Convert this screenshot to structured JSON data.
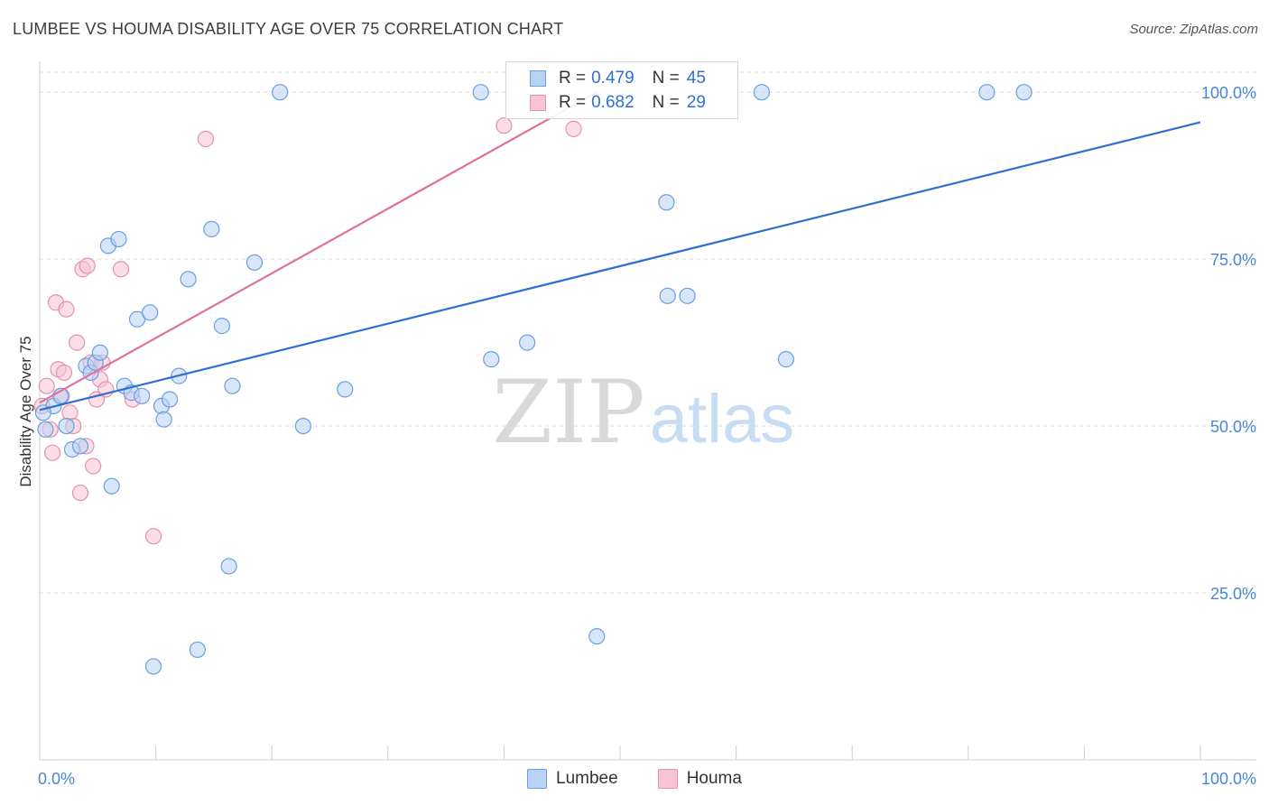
{
  "title": "LUMBEE VS HOUMA DISABILITY AGE OVER 75 CORRELATION CHART",
  "source": "Source: ZipAtlas.com",
  "watermark": {
    "zip": "ZIP",
    "atlas": "atlas"
  },
  "colors": {
    "lumbee_fill": "#b8d2f4",
    "lumbee_stroke": "#6a9fe0",
    "lumbee_line": "#2e6fcf",
    "houma_fill": "#f8c3d4",
    "houma_stroke": "#e691ad",
    "houma_line": "#e0709a",
    "tick_label": "#4a86d8",
    "grid": "#dddddd"
  },
  "legend": {
    "rows": [
      {
        "series": "Lumbee",
        "r_label": "R =",
        "r_value": "0.479",
        "n_label": "N =",
        "n_value": "45"
      },
      {
        "series": "Houma",
        "r_label": "R =",
        "r_value": "0.682",
        "n_label": "N =",
        "n_value": "29"
      }
    ],
    "bottom": [
      "Lumbee",
      "Houma"
    ]
  },
  "chart_data": {
    "type": "scatter",
    "xlabel": "",
    "ylabel": "Disability Age Over 75",
    "xlim": [
      0,
      100
    ],
    "ylim": [
      0,
      103
    ],
    "x_tick_labels": [
      "0.0%",
      "100.0%"
    ],
    "y_tick_labels": [
      "25.0%",
      "50.0%",
      "75.0%",
      "100.0%"
    ],
    "y_ticks": [
      25,
      50,
      75,
      100
    ],
    "grid": true,
    "legend_position": "top-center",
    "series": [
      {
        "name": "Lumbee",
        "r": 0.479,
        "n": 45,
        "trend": [
          [
            0,
            52.4
          ],
          [
            100,
            95.5
          ]
        ],
        "points": [
          [
            0.5,
            49.5
          ],
          [
            1.2,
            53.0
          ],
          [
            1.8,
            54.5
          ],
          [
            2.3,
            50.0
          ],
          [
            2.8,
            46.5
          ],
          [
            3.5,
            47.0
          ],
          [
            4.0,
            59.0
          ],
          [
            4.4,
            58.0
          ],
          [
            4.8,
            59.5
          ],
          [
            5.2,
            61.0
          ],
          [
            5.9,
            77.0
          ],
          [
            6.2,
            41.0
          ],
          [
            6.8,
            78.0
          ],
          [
            7.3,
            56.0
          ],
          [
            7.9,
            55.0
          ],
          [
            8.4,
            66.0
          ],
          [
            8.8,
            54.5
          ],
          [
            9.5,
            67.0
          ],
          [
            9.8,
            14.0
          ],
          [
            10.5,
            53.0
          ],
          [
            10.7,
            51.0
          ],
          [
            11.2,
            54.0
          ],
          [
            12.0,
            57.5
          ],
          [
            12.8,
            72.0
          ],
          [
            13.6,
            16.5
          ],
          [
            14.8,
            79.5
          ],
          [
            15.7,
            65.0
          ],
          [
            16.3,
            29.0
          ],
          [
            16.6,
            56.0
          ],
          [
            18.5,
            74.5
          ],
          [
            20.7,
            100.0
          ],
          [
            22.7,
            50.0
          ],
          [
            26.3,
            55.5
          ],
          [
            38.0,
            100.0
          ],
          [
            38.9,
            60.0
          ],
          [
            42.0,
            62.5
          ],
          [
            48.0,
            18.5
          ],
          [
            54.0,
            83.5
          ],
          [
            54.1,
            69.5
          ],
          [
            55.8,
            69.5
          ],
          [
            62.2,
            100.0
          ],
          [
            64.3,
            60.0
          ],
          [
            81.6,
            100.0
          ],
          [
            84.8,
            100.0
          ],
          [
            0.3,
            52.0
          ]
        ]
      },
      {
        "name": "Houma",
        "r": 0.682,
        "n": 29,
        "trend": [
          [
            0,
            53.5
          ],
          [
            48,
            100.0
          ]
        ],
        "points": [
          [
            0.2,
            53.0
          ],
          [
            0.6,
            56.0
          ],
          [
            0.9,
            49.5
          ],
          [
            1.1,
            46.0
          ],
          [
            1.4,
            68.5
          ],
          [
            1.6,
            58.5
          ],
          [
            1.9,
            54.5
          ],
          [
            2.1,
            58.0
          ],
          [
            2.3,
            67.5
          ],
          [
            2.6,
            52.0
          ],
          [
            2.9,
            50.0
          ],
          [
            3.2,
            62.5
          ],
          [
            3.5,
            40.0
          ],
          [
            3.7,
            73.5
          ],
          [
            4.0,
            47.0
          ],
          [
            4.1,
            74.0
          ],
          [
            4.4,
            59.5
          ],
          [
            4.6,
            44.0
          ],
          [
            4.9,
            54.0
          ],
          [
            5.2,
            57.0
          ],
          [
            5.4,
            59.5
          ],
          [
            5.7,
            55.5
          ],
          [
            7.0,
            73.5
          ],
          [
            8.0,
            54.0
          ],
          [
            9.8,
            33.5
          ],
          [
            14.3,
            93.0
          ],
          [
            40.0,
            95.0
          ],
          [
            42.9,
            98.5
          ],
          [
            46.0,
            94.5
          ]
        ]
      }
    ]
  }
}
